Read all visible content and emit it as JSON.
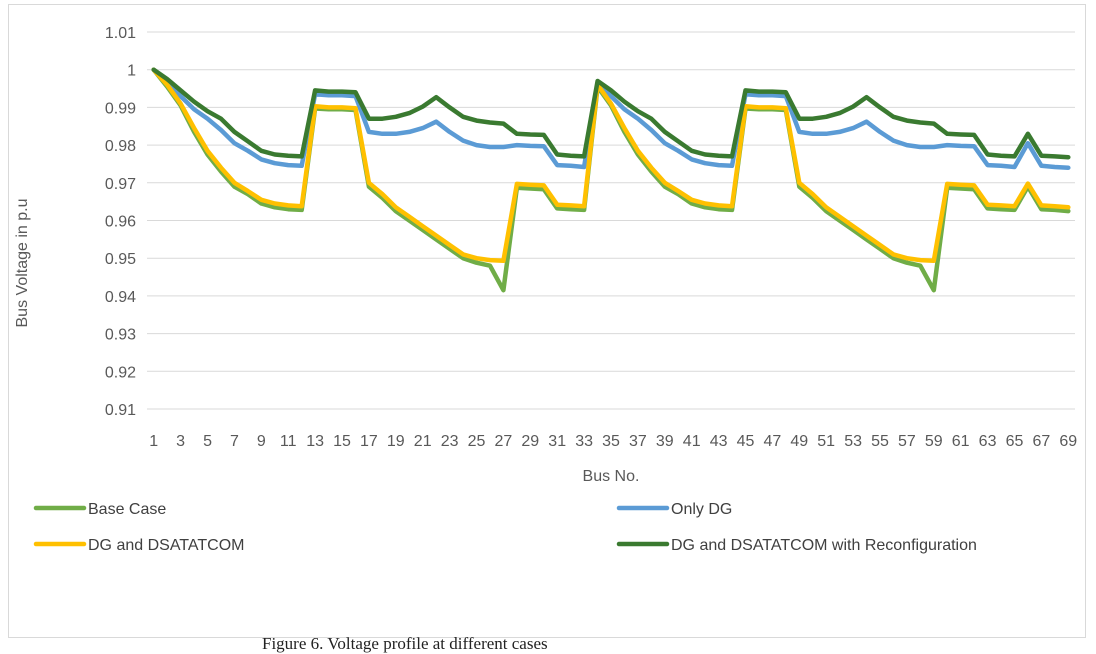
{
  "caption": "Figure 6. Voltage profile at different cases",
  "chart_data": {
    "type": "line",
    "title": "",
    "xlabel": "Bus No.",
    "ylabel": "Bus Voltage in p.u",
    "ylim": [
      0.91,
      1.01
    ],
    "yticks": [
      "0.91",
      "0.92",
      "0.93",
      "0.94",
      "0.95",
      "0.96",
      "0.97",
      "0.98",
      "0.99",
      "1",
      "1.01"
    ],
    "xticks": [
      "1",
      "3",
      "5",
      "7",
      "9",
      "11",
      "13",
      "15",
      "17",
      "19",
      "21",
      "23",
      "25",
      "27",
      "29",
      "31",
      "33",
      "35",
      "37",
      "39",
      "41",
      "43",
      "45",
      "47",
      "49",
      "51",
      "53",
      "55",
      "57",
      "59",
      "61",
      "63",
      "65",
      "67",
      "69"
    ],
    "x": [
      1,
      2,
      3,
      4,
      5,
      6,
      7,
      8,
      9,
      10,
      11,
      12,
      13,
      14,
      15,
      16,
      17,
      18,
      19,
      20,
      21,
      22,
      23,
      24,
      25,
      26,
      27,
      28,
      29,
      30,
      31,
      32,
      33,
      34,
      35,
      36,
      37,
      38,
      39,
      40,
      41,
      42,
      43,
      44,
      45,
      46,
      47,
      48,
      49,
      50,
      51,
      52,
      53,
      54,
      55,
      56,
      57,
      58,
      59,
      60,
      61,
      62,
      63,
      64,
      65,
      66,
      67,
      68,
      69
    ],
    "grid": true,
    "legend_position": "bottom",
    "series": [
      {
        "name": "Base Case",
        "color": "#70ad47",
        "values": [
          1.0,
          0.9955,
          0.9905,
          0.9835,
          0.9775,
          0.973,
          0.969,
          0.967,
          0.9645,
          0.9635,
          0.963,
          0.9628,
          0.9897,
          0.9895,
          0.9895,
          0.9893,
          0.969,
          0.966,
          0.9625,
          0.96,
          0.9575,
          0.955,
          0.9525,
          0.95,
          0.9488,
          0.948,
          0.9415,
          0.9687,
          0.9685,
          0.9683,
          0.9632,
          0.963,
          0.9628,
          0.9955,
          0.9905,
          0.9835,
          0.9775,
          0.973,
          0.969,
          0.967,
          0.9645,
          0.9635,
          0.963,
          0.9628,
          0.9897,
          0.9895,
          0.9895,
          0.9893,
          0.969,
          0.966,
          0.9625,
          0.96,
          0.9575,
          0.955,
          0.9525,
          0.95,
          0.9488,
          0.948,
          0.9415,
          0.9687,
          0.9685,
          0.9683,
          0.9632,
          0.963,
          0.9628,
          0.969,
          0.963,
          0.9628,
          0.9625
        ]
      },
      {
        "name": "Only DG",
        "color": "#5b9bd5",
        "values": [
          1.0,
          0.9965,
          0.993,
          0.9895,
          0.987,
          0.984,
          0.9805,
          0.9785,
          0.9762,
          0.9752,
          0.9747,
          0.9745,
          0.9935,
          0.9932,
          0.9932,
          0.993,
          0.9835,
          0.983,
          0.983,
          0.9835,
          0.9845,
          0.9862,
          0.9835,
          0.9812,
          0.98,
          0.9795,
          0.9795,
          0.98,
          0.9798,
          0.9797,
          0.9747,
          0.9745,
          0.9742,
          0.9965,
          0.993,
          0.9895,
          0.987,
          0.984,
          0.9805,
          0.9785,
          0.9762,
          0.9752,
          0.9747,
          0.9745,
          0.9935,
          0.9932,
          0.9932,
          0.993,
          0.9835,
          0.983,
          0.983,
          0.9835,
          0.9845,
          0.9862,
          0.9835,
          0.9812,
          0.98,
          0.9795,
          0.9795,
          0.98,
          0.9798,
          0.9797,
          0.9747,
          0.9745,
          0.9742,
          0.9805,
          0.9745,
          0.9742,
          0.974
        ]
      },
      {
        "name": "DG and DSATATCOM",
        "color": "#ffc000",
        "values": [
          1.0,
          0.996,
          0.991,
          0.9845,
          0.9785,
          0.974,
          0.97,
          0.9678,
          0.9655,
          0.9645,
          0.964,
          0.9638,
          0.9903,
          0.99,
          0.99,
          0.9898,
          0.97,
          0.967,
          0.9635,
          0.961,
          0.9585,
          0.956,
          0.9535,
          0.951,
          0.95,
          0.9495,
          0.9493,
          0.9697,
          0.9695,
          0.9693,
          0.9642,
          0.964,
          0.9638,
          0.996,
          0.991,
          0.9845,
          0.9785,
          0.974,
          0.97,
          0.9678,
          0.9655,
          0.9645,
          0.964,
          0.9638,
          0.9903,
          0.99,
          0.99,
          0.9898,
          0.97,
          0.967,
          0.9635,
          0.961,
          0.9585,
          0.956,
          0.9535,
          0.951,
          0.95,
          0.9495,
          0.9493,
          0.9697,
          0.9695,
          0.9693,
          0.9642,
          0.964,
          0.9638,
          0.9698,
          0.964,
          0.9638,
          0.9635
        ]
      },
      {
        "name": "DG and DSATATCOM with Reconfiguration",
        "color": "#3a7a30",
        "values": [
          1.0,
          0.9975,
          0.9945,
          0.9915,
          0.989,
          0.987,
          0.9835,
          0.981,
          0.9785,
          0.9775,
          0.9772,
          0.977,
          0.9945,
          0.9942,
          0.9942,
          0.994,
          0.987,
          0.987,
          0.9875,
          0.9885,
          0.9902,
          0.9927,
          0.99,
          0.9875,
          0.9865,
          0.986,
          0.9857,
          0.983,
          0.9828,
          0.9827,
          0.9775,
          0.9772,
          0.977,
          0.997,
          0.9945,
          0.9915,
          0.989,
          0.987,
          0.9835,
          0.981,
          0.9785,
          0.9775,
          0.9772,
          0.977,
          0.9945,
          0.9942,
          0.9942,
          0.994,
          0.987,
          0.987,
          0.9875,
          0.9885,
          0.9902,
          0.9927,
          0.99,
          0.9875,
          0.9865,
          0.986,
          0.9857,
          0.983,
          0.9828,
          0.9827,
          0.9775,
          0.9772,
          0.977,
          0.983,
          0.9772,
          0.977,
          0.9768
        ]
      }
    ]
  }
}
